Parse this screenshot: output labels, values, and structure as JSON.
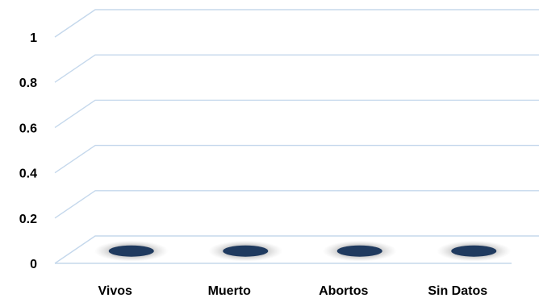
{
  "chart_data": {
    "type": "bar",
    "categories": [
      "Vivos",
      "Muerto",
      "Abortos",
      "Sin Datos"
    ],
    "values": [
      0,
      0,
      0,
      0
    ],
    "ylim": [
      0,
      1
    ],
    "yticks": [
      "0",
      "0.2",
      "0.4",
      "0.6",
      "0.8",
      "1"
    ],
    "title": "",
    "xlabel": "",
    "ylabel": "",
    "grid": true,
    "legend": "none",
    "style": "3d-cylinder",
    "colors": {
      "bar": "#1f3a5f",
      "grid": "#c5d8ec"
    }
  }
}
